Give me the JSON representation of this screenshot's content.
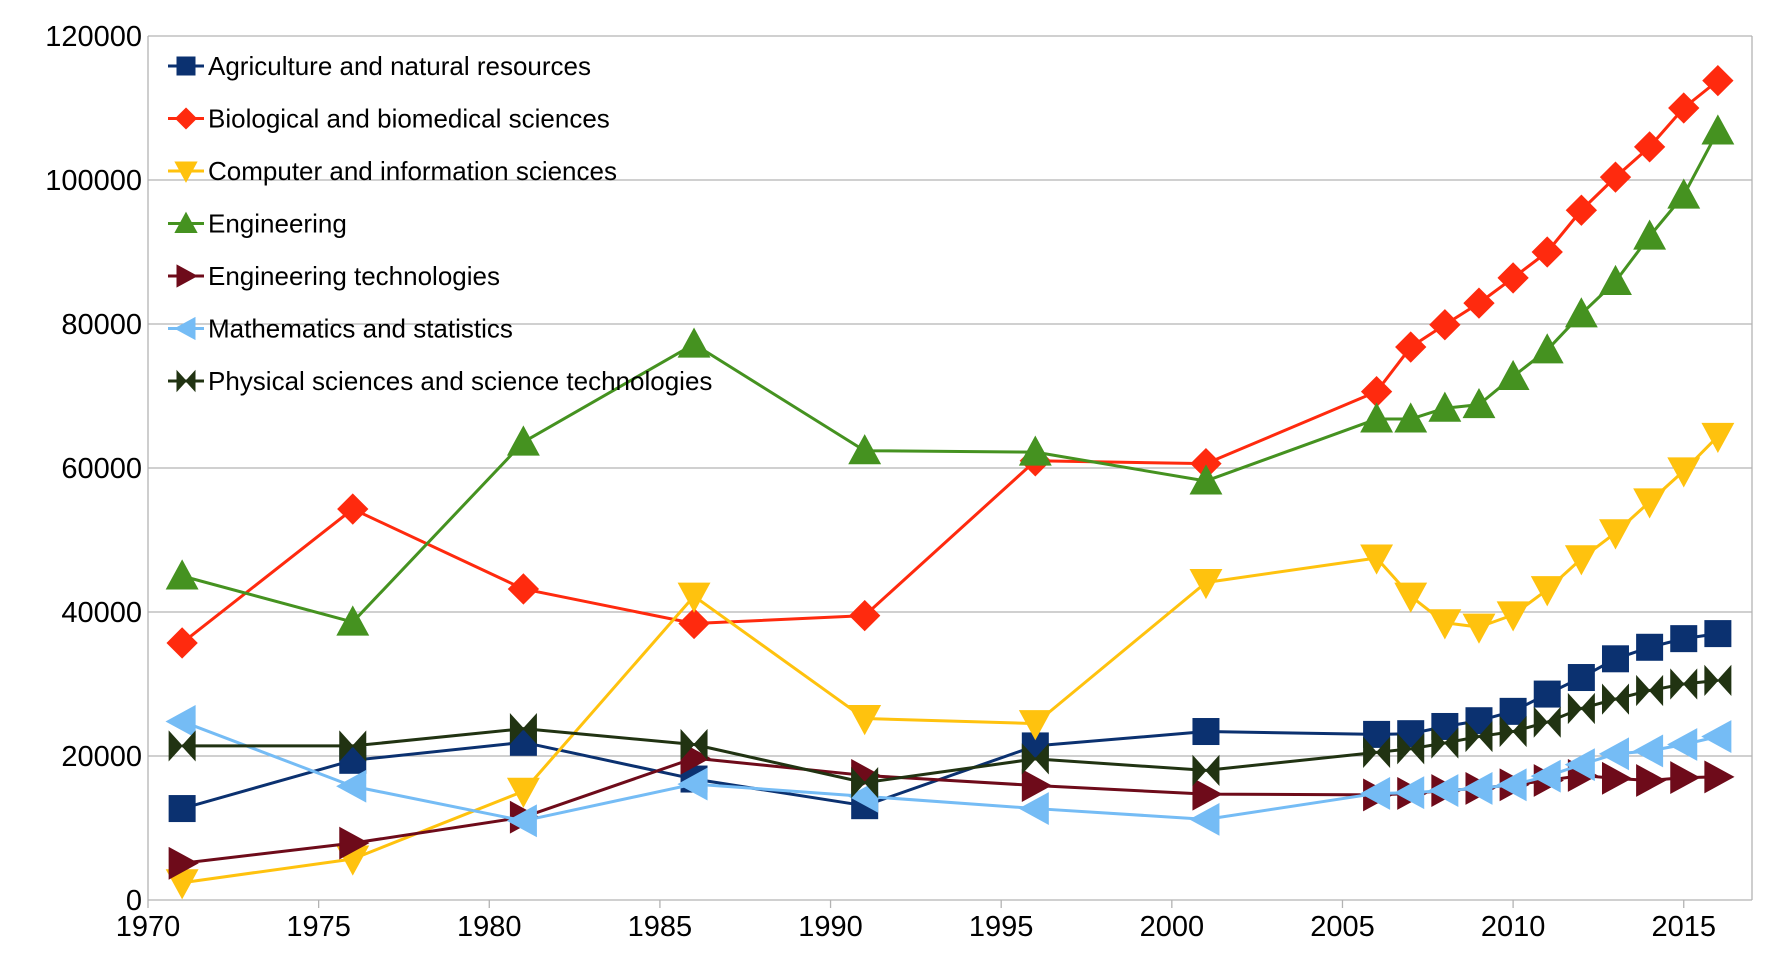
{
  "chart_data": {
    "type": "line",
    "title": "",
    "xlabel": "",
    "ylabel": "",
    "xlim": [
      1970,
      2017
    ],
    "ylim": [
      0,
      120000
    ],
    "x_ticks": [
      1970,
      1975,
      1980,
      1985,
      1990,
      1995,
      2000,
      2005,
      2010,
      2015
    ],
    "y_ticks": [
      0,
      20000,
      40000,
      60000,
      80000,
      100000,
      120000
    ],
    "grid": "horizontal",
    "legend_position": "top-left",
    "x": [
      1971,
      1976,
      1981,
      1986,
      1991,
      1996,
      2001,
      2006,
      2007,
      2008,
      2009,
      2010,
      2011,
      2012,
      2013,
      2014,
      2015,
      2016
    ],
    "series": [
      {
        "name": "Agriculture and natural resources",
        "color": "#0b3170",
        "marker": "square",
        "values": [
          12700,
          19400,
          21900,
          16800,
          13100,
          21400,
          23400,
          23000,
          23100,
          24100,
          24900,
          26200,
          28600,
          30900,
          33500,
          35100,
          36300,
          37000
        ]
      },
      {
        "name": "Biological and biomedical sciences",
        "color": "#ff2a0e",
        "marker": "diamond",
        "values": [
          35700,
          54300,
          43200,
          38400,
          39500,
          61000,
          60600,
          70600,
          76800,
          79900,
          82900,
          86400,
          90000,
          95800,
          100400,
          104600,
          110000,
          113800
        ]
      },
      {
        "name": "Computer and information sciences",
        "color": "#ffc20e",
        "marker": "triangle-down",
        "values": [
          2400,
          5700,
          15100,
          42200,
          25200,
          24500,
          44100,
          47500,
          42200,
          38500,
          37900,
          39600,
          43100,
          47400,
          51000,
          55300,
          59600,
          64400
        ]
      },
      {
        "name": "Engineering",
        "color": "#459220",
        "marker": "triangle-up",
        "values": [
          45000,
          38600,
          63600,
          77200,
          62400,
          62200,
          58200,
          66800,
          66800,
          68300,
          68800,
          72700,
          76400,
          81400,
          85900,
          92200,
          97900,
          106800
        ]
      },
      {
        "name": "Engineering technologies",
        "color": "#6e0b1a",
        "marker": "triangle-right",
        "values": [
          5100,
          7900,
          11500,
          19700,
          17300,
          15900,
          14700,
          14600,
          14800,
          15200,
          15500,
          16000,
          16600,
          17300,
          16900,
          16600,
          17000,
          17100
        ]
      },
      {
        "name": "Mathematics and statistics",
        "color": "#75bcf5",
        "marker": "triangle-left",
        "values": [
          24800,
          15800,
          11000,
          16100,
          14400,
          12700,
          11200,
          14800,
          14900,
          15200,
          15500,
          16000,
          17200,
          18800,
          20300,
          20700,
          21600,
          22700
        ]
      },
      {
        "name": "Physical sciences and science technologies",
        "color": "#213312",
        "marker": "bowtie",
        "values": [
          21400,
          21400,
          23800,
          21600,
          16300,
          19600,
          18000,
          20500,
          21000,
          21800,
          22700,
          23400,
          24700,
          26600,
          27900,
          29100,
          30000,
          30500
        ]
      }
    ]
  }
}
